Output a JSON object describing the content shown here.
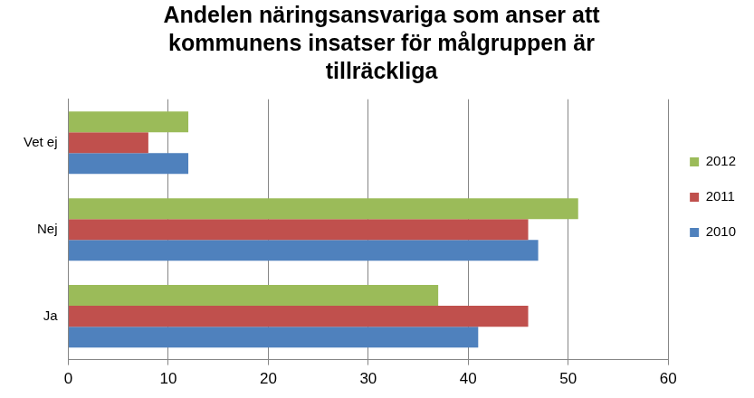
{
  "chart_data": {
    "type": "bar",
    "orientation": "horizontal",
    "title": [
      "Andelen näringsansvariga som anser att",
      "kommunens insatser för målgruppen är",
      "tillräckliga"
    ],
    "categories": [
      "Vet ej",
      "Nej",
      "Ja"
    ],
    "series": [
      {
        "name": "2012",
        "color": "#9bbb59",
        "values": [
          12,
          51,
          37
        ]
      },
      {
        "name": "2011",
        "color": "#c0504d",
        "values": [
          8,
          46,
          46
        ]
      },
      {
        "name": "2010",
        "color": "#4f81bd",
        "values": [
          12,
          47,
          41
        ]
      }
    ],
    "xlim": [
      0,
      60
    ],
    "xticks": [
      0,
      10,
      20,
      30,
      40,
      50,
      60
    ],
    "grid": true,
    "legend": "right"
  }
}
